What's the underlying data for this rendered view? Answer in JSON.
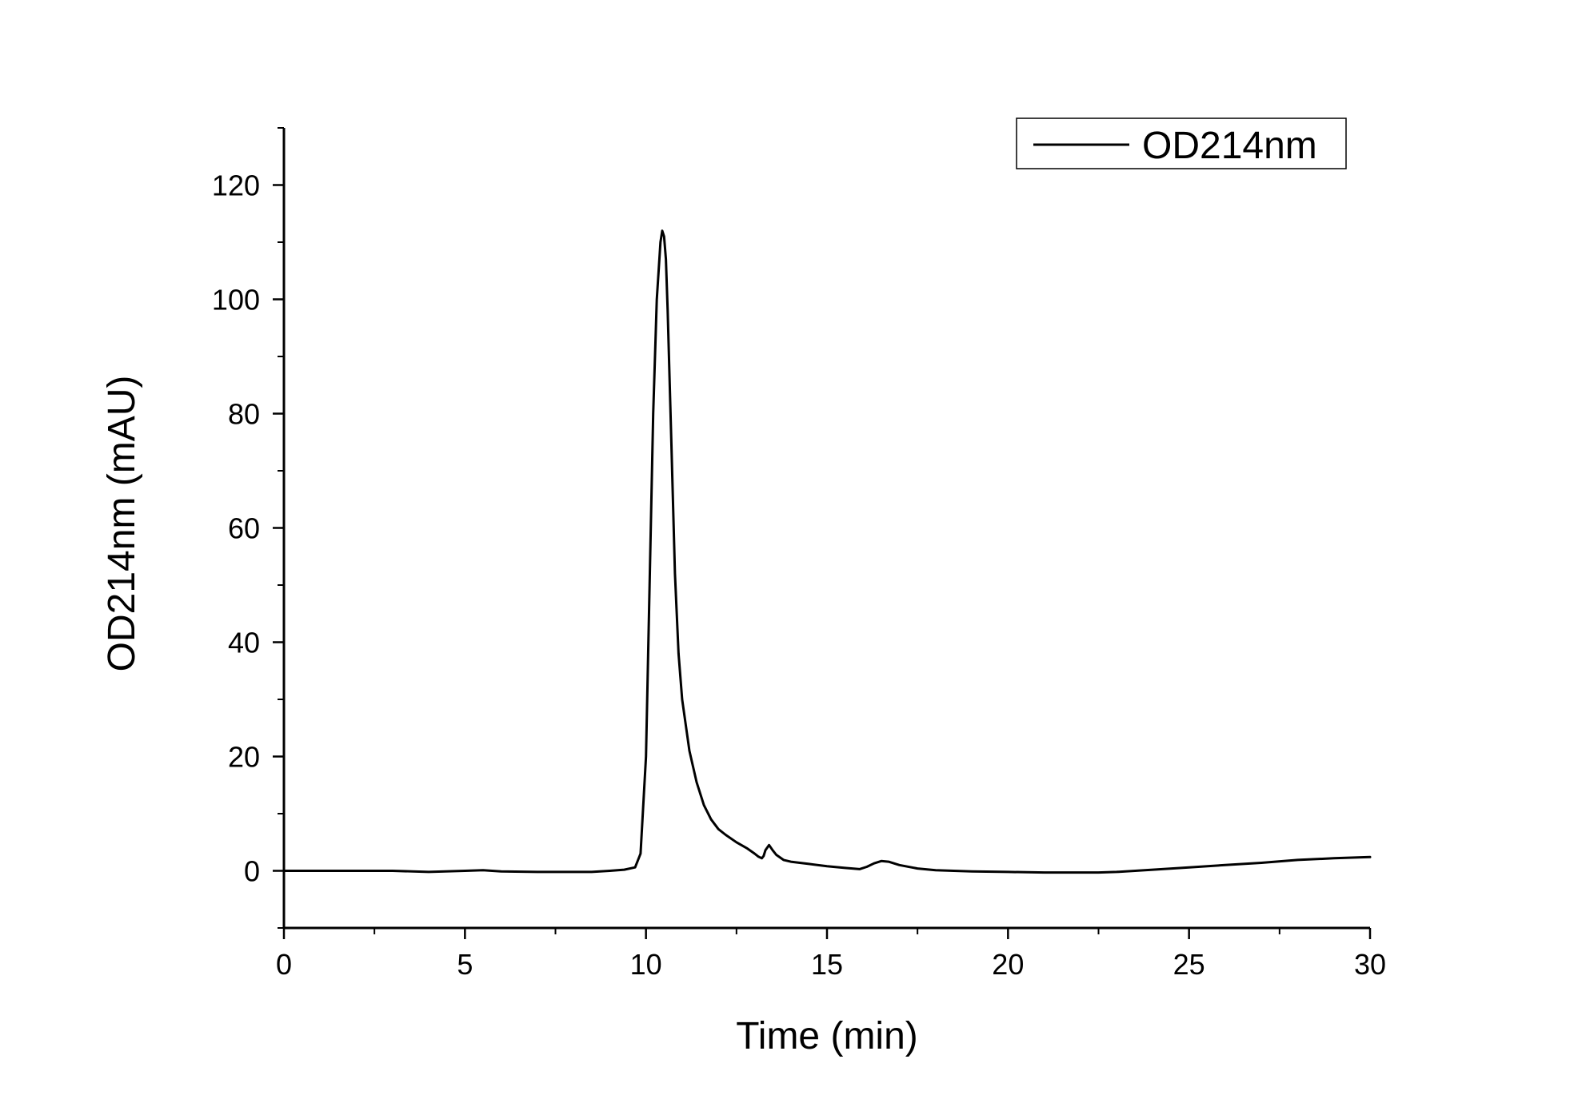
{
  "chart_data": {
    "type": "line",
    "title": "",
    "xlabel": "Time (min)",
    "ylabel": "OD214nm (mAU)",
    "xlim": [
      0,
      30
    ],
    "ylim": [
      -10,
      130
    ],
    "x_ticks": [
      0,
      5,
      10,
      15,
      20,
      25,
      30
    ],
    "x_tick_labels": [
      "0",
      "5",
      "10",
      "15",
      "20",
      "25",
      "30"
    ],
    "y_ticks": [
      0,
      20,
      40,
      60,
      80,
      100,
      120
    ],
    "y_tick_labels": [
      "0",
      "20",
      "40",
      "60",
      "80",
      "100",
      "120"
    ],
    "grid": false,
    "legend_position": "top-right",
    "line_color": "#000000",
    "series": [
      {
        "name": "OD214nm",
        "x": [
          0,
          1,
          2,
          3,
          4,
          5,
          5.5,
          6,
          7,
          8,
          8.5,
          9,
          9.4,
          9.7,
          9.85,
          10.0,
          10.1,
          10.2,
          10.3,
          10.4,
          10.45,
          10.5,
          10.55,
          10.6,
          10.7,
          10.8,
          10.9,
          11.0,
          11.2,
          11.4,
          11.6,
          11.8,
          12.0,
          12.2,
          12.5,
          12.8,
          13.0,
          13.1,
          13.2,
          13.25,
          13.3,
          13.4,
          13.5,
          13.6,
          13.8,
          14.0,
          14.5,
          15.0,
          15.5,
          15.9,
          16.1,
          16.3,
          16.5,
          16.7,
          17.0,
          17.5,
          18.0,
          19.0,
          20.0,
          21.0,
          22.0,
          22.5,
          23.0,
          24.0,
          25.0,
          26.0,
          27.0,
          28.0,
          29.0,
          30.0
        ],
        "y": [
          0,
          0,
          0,
          0,
          -0.2,
          0,
          0.1,
          -0.1,
          -0.2,
          -0.2,
          -0.2,
          0,
          0.2,
          0.6,
          3,
          20,
          50,
          80,
          100,
          110,
          112,
          111,
          107,
          98,
          75,
          52,
          38,
          30,
          21,
          15.5,
          11.5,
          9,
          7.3,
          6.3,
          5,
          3.9,
          3.0,
          2.5,
          2.2,
          2.6,
          3.6,
          4.5,
          3.6,
          2.8,
          1.9,
          1.6,
          1.2,
          0.8,
          0.5,
          0.3,
          0.7,
          1.3,
          1.7,
          1.6,
          1.0,
          0.4,
          0.1,
          -0.1,
          -0.2,
          -0.3,
          -0.3,
          -0.3,
          -0.2,
          0.2,
          0.6,
          1.0,
          1.4,
          1.9,
          2.2,
          2.4
        ]
      }
    ]
  }
}
